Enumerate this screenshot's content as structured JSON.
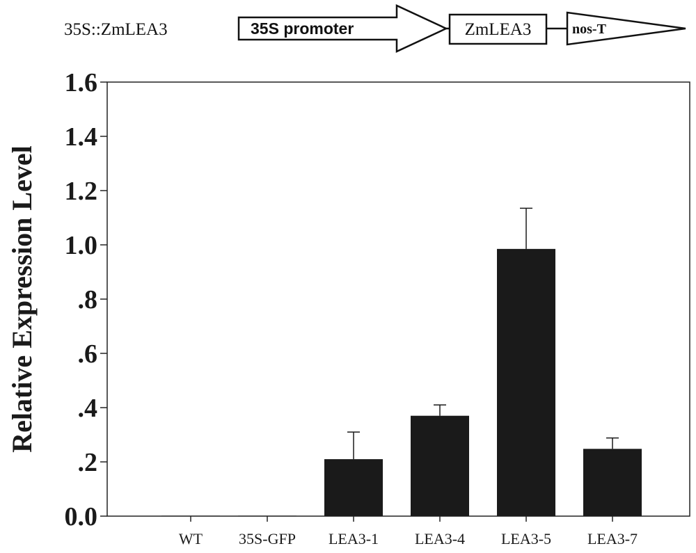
{
  "construct": {
    "label": "35S::ZmLEA3",
    "promoter": "35S promoter",
    "gene": "ZmLEA3",
    "terminator": "nos-T"
  },
  "chart_data": {
    "type": "bar",
    "ylabel": "Relative Expression Level",
    "ylim": [
      0,
      1.6
    ],
    "yticks": [
      0,
      0.2,
      0.4,
      0.6,
      0.8,
      1.0,
      1.2,
      1.4,
      1.6
    ],
    "ytick_labels": [
      "0.0",
      ".2",
      ".4",
      ".6",
      ".8",
      "1.0",
      "1.2",
      "1.4",
      "1.6"
    ],
    "categories": [
      "WT",
      "35S-GFP",
      "LEA3-1",
      "LEA3-4",
      "LEA3-5",
      "LEA3-7"
    ],
    "values": [
      0.001,
      0.001,
      0.21,
      0.37,
      0.985,
      0.248
    ],
    "errors": [
      0,
      0,
      0.1,
      0.04,
      0.15,
      0.04
    ],
    "grid": false,
    "bar_color": "#1a1a1a"
  }
}
